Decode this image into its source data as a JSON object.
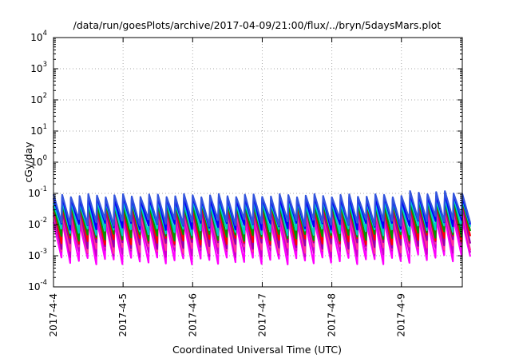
{
  "chart_data": {
    "type": "line",
    "title": "/data/run/goesPlots/archive/2017-04-09/21:00/flux/../bryn/5daysMars.plot",
    "xlabel": "Coordinated Universal Time (UTC)",
    "ylabel": "cGy/day",
    "yscale": "log",
    "ylim": [
      0.0001,
      10000
    ],
    "xlim": [
      "2017-04-04 00:00",
      "2017-04-09 21:00"
    ],
    "grid": true,
    "legend": "none",
    "y_ticks": [
      {
        "base": "10",
        "exp": "4"
      },
      {
        "base": "10",
        "exp": "3"
      },
      {
        "base": "10",
        "exp": "2"
      },
      {
        "base": "10",
        "exp": "1"
      },
      {
        "base": "10",
        "exp": "0"
      },
      {
        "base": "10",
        "exp": "-1"
      },
      {
        "base": "10",
        "exp": "-2"
      },
      {
        "base": "10",
        "exp": "-3"
      },
      {
        "base": "10",
        "exp": "-4"
      }
    ],
    "x_ticks": [
      "2017-4-4",
      "2017-4-5",
      "2017-4-6",
      "2017-4-7",
      "2017-4-8",
      "2017-4-9"
    ],
    "sawtooth_period_hours": 3,
    "series": [
      {
        "color": "#ff00ff",
        "peak": 0.012,
        "trough": 0.0007
      },
      {
        "color": "#cc00cc",
        "peak": 0.018,
        "trough": 0.0012
      },
      {
        "color": "#ff3399",
        "peak": 0.022,
        "trough": 0.0016
      },
      {
        "color": "#9900aa",
        "peak": 0.03,
        "trough": 0.0022
      },
      {
        "color": "#ff0000",
        "peak": 0.04,
        "trough": 0.003
      },
      {
        "color": "#009900",
        "peak": 0.045,
        "trough": 0.004
      },
      {
        "color": "#00cccc",
        "peak": 0.055,
        "trough": 0.006
      },
      {
        "color": "#0000ff",
        "peak": 0.07,
        "trough": 0.009
      },
      {
        "color": "#3355dd",
        "peak": 0.085,
        "trough": 0.012
      }
    ]
  }
}
